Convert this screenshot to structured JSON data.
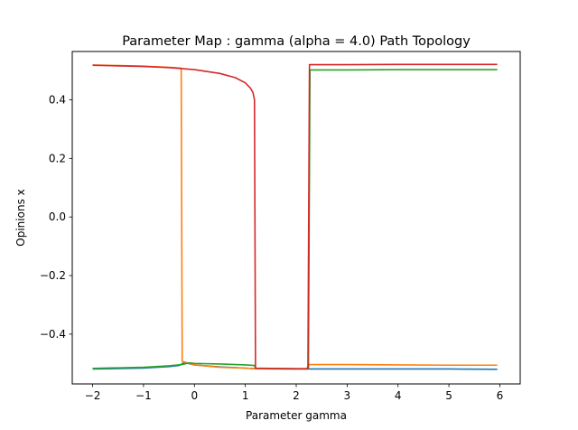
{
  "chart_data": {
    "type": "line",
    "title": "Parameter Map : gamma (alpha = 4.0) Path Topology",
    "xlabel": "Parameter gamma",
    "ylabel": "Opinions x",
    "xlim": [
      -2.4,
      6.4
    ],
    "ylim": [
      -0.57,
      0.565
    ],
    "xticks": [
      -2,
      -1,
      0,
      1,
      2,
      3,
      4,
      5,
      6
    ],
    "xtick_labels": [
      "−2",
      "−1",
      "0",
      "1",
      "2",
      "3",
      "4",
      "5",
      "6"
    ],
    "yticks": [
      -0.4,
      -0.2,
      0.0,
      0.2,
      0.4
    ],
    "ytick_labels": [
      "−0.4",
      "−0.2",
      "0.0",
      "0.2",
      "0.4"
    ],
    "grid": false,
    "legend": "none",
    "series": [
      {
        "color": "#1f77b4",
        "points": [
          [
            -2.0,
            -0.519
          ],
          [
            -1.0,
            -0.516
          ],
          [
            -0.5,
            -0.511
          ],
          [
            -0.3,
            -0.507
          ],
          [
            -0.2,
            -0.497
          ],
          [
            0.0,
            -0.505
          ],
          [
            0.5,
            -0.512
          ],
          [
            1.0,
            -0.516
          ],
          [
            1.2,
            -0.518
          ],
          [
            2.0,
            -0.519
          ],
          [
            2.25,
            -0.519
          ],
          [
            3.0,
            -0.519
          ],
          [
            4.0,
            -0.519
          ],
          [
            5.0,
            -0.519
          ],
          [
            5.95,
            -0.52
          ]
        ]
      },
      {
        "color": "#ff7f0e",
        "points": [
          [
            -2.0,
            0.519
          ],
          [
            -1.0,
            0.515
          ],
          [
            -0.5,
            0.511
          ],
          [
            -0.26,
            0.508
          ],
          [
            -0.24,
            -0.493
          ],
          [
            0.0,
            -0.505
          ],
          [
            0.5,
            -0.513
          ],
          [
            1.0,
            -0.516
          ],
          [
            1.2,
            -0.518
          ],
          [
            2.0,
            -0.519
          ],
          [
            2.2,
            -0.519
          ],
          [
            2.26,
            -0.504
          ],
          [
            3.0,
            -0.504
          ],
          [
            4.0,
            -0.505
          ],
          [
            5.0,
            -0.506
          ],
          [
            5.95,
            -0.506
          ]
        ]
      },
      {
        "color": "#2ca02c",
        "points": [
          [
            -2.0,
            -0.517
          ],
          [
            -1.0,
            -0.513
          ],
          [
            -0.5,
            -0.508
          ],
          [
            -0.25,
            -0.504
          ],
          [
            -0.1,
            -0.498
          ],
          [
            0.0,
            -0.5
          ],
          [
            0.5,
            -0.502
          ],
          [
            1.0,
            -0.505
          ],
          [
            1.18,
            -0.507
          ],
          [
            1.2,
            -0.516
          ],
          [
            2.0,
            -0.518
          ],
          [
            2.24,
            -0.518
          ],
          [
            2.27,
            0.502
          ],
          [
            3.0,
            0.502
          ],
          [
            4.0,
            0.503
          ],
          [
            5.0,
            0.503
          ],
          [
            5.95,
            0.503
          ]
        ]
      },
      {
        "color": "#d62728",
        "points": [
          [
            -2.0,
            0.518
          ],
          [
            -1.0,
            0.514
          ],
          [
            -0.5,
            0.51
          ],
          [
            0.0,
            0.503
          ],
          [
            0.5,
            0.49
          ],
          [
            0.8,
            0.476
          ],
          [
            1.0,
            0.458
          ],
          [
            1.1,
            0.44
          ],
          [
            1.15,
            0.425
          ],
          [
            1.18,
            0.4
          ],
          [
            1.2,
            -0.517
          ],
          [
            2.0,
            -0.518
          ],
          [
            2.23,
            -0.518
          ],
          [
            2.26,
            0.52
          ],
          [
            3.0,
            0.52
          ],
          [
            4.0,
            0.521
          ],
          [
            5.0,
            0.521
          ],
          [
            5.95,
            0.521
          ]
        ]
      }
    ]
  }
}
